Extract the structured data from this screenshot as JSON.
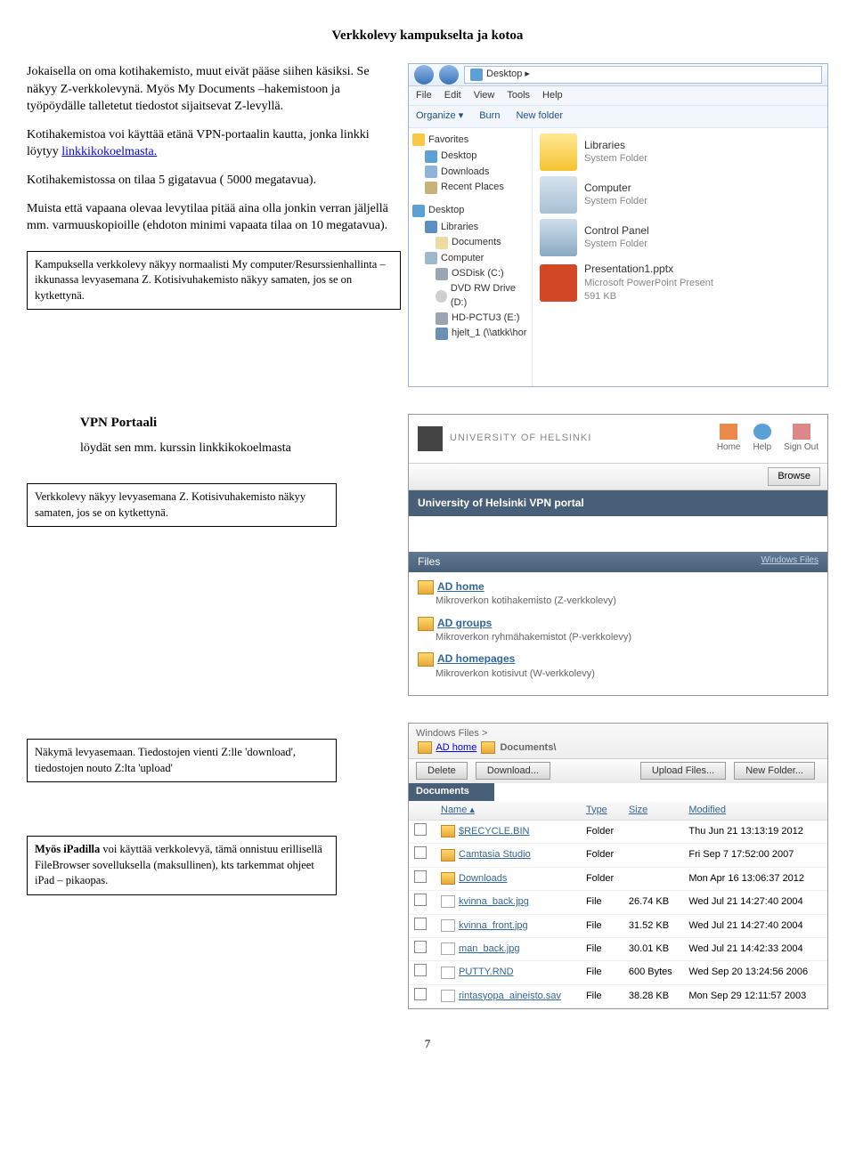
{
  "title": "Verkkolevy kampukselta ja kotoa",
  "intro": {
    "p1": "Jokaisella on oma kotihakemisto, muut eivät pääse siihen käsiksi. Se näkyy Z-verkkolevynä. Myös My Documents –hakemistoon ja työpöydälle talletetut tiedostot sijaitsevat Z-levyllä.",
    "p2a": "Kotihakemistoa voi käyttää etänä VPN-portaalin kautta, jonka linkki löytyy ",
    "p2link": "linkkikokoelmasta.",
    "p3": "Kotihakemistossa on tilaa 5 gigatavua ( 5000 megatavua).",
    "p4": "Muista että vapaana olevaa levytilaa pitää aina olla jonkin verran jäljellä mm. varmuuskopioille (ehdoton minimi vapaata tilaa on 10 megatavua)."
  },
  "callout1": "Kampuksella verkkolevy näkyy normaalisti My computer/Resurssienhallinta –ikkunassa levyasemana Z. Kotisivuhakemisto näkyy samaten, jos se on kytkettynä.",
  "explorer": {
    "breadcrumb_icon": "Desktop",
    "breadcrumb": "Desktop ▸",
    "menu": [
      "File",
      "Edit",
      "View",
      "Tools",
      "Help"
    ],
    "toolbar": [
      "Organize ▾",
      "Burn",
      "New folder"
    ],
    "favorites_title": "Favorites",
    "favorites": [
      "Desktop",
      "Downloads",
      "Recent Places"
    ],
    "desktop_title": "Desktop",
    "desktop_items": [
      "Libraries",
      "Documents",
      "Computer",
      "OSDisk (C:)",
      "DVD RW Drive (D:)",
      "HD-PCTU3 (E:)",
      "hjelt_1 (\\\\atkk\\hor"
    ],
    "content": [
      {
        "t1": "Libraries",
        "t2": "System Folder",
        "cls": "folder"
      },
      {
        "t1": "Computer",
        "t2": "System Folder",
        "cls": "computer"
      },
      {
        "t1": "Control Panel",
        "t2": "System Folder",
        "cls": "cp"
      },
      {
        "t1": "Presentation1.pptx",
        "t2": "Microsoft PowerPoint Present",
        "t3": "591 KB",
        "cls": "pp"
      }
    ]
  },
  "vpn": {
    "heading": "VPN Portaali",
    "sub": "löydät sen mm. kurssin linkkikokoelmasta",
    "callout": "Verkkolevy näkyy levyasemana Z. Kotisivuhakemisto näkyy samaten, jos se on kytkettynä.",
    "org": "UNIVERSITY OF HELSINKI",
    "icons": [
      "Home",
      "Help",
      "Sign Out"
    ],
    "browse": "Browse",
    "darkbar": "University of Helsinki VPN portal",
    "files": "Files",
    "wf": "Windows Files",
    "list": [
      {
        "t": "AD home",
        "d": "Mikroverkon kotihakemisto (Z-verkkolevy)"
      },
      {
        "t": "AD groups",
        "d": "Mikroverkon ryhmähakemistot (P-verkkolevy)"
      },
      {
        "t": "AD homepages",
        "d": "Mikroverkon kotisivut (W-verkkolevy)"
      }
    ]
  },
  "sec3": {
    "callout": "Näkymä levyasemaan. Tiedostojen vienti Z:lle 'download', tiedostojen nouto Z:lta 'upload'",
    "bc_prefix": "Windows Files >",
    "bc_link": "AD home",
    "bc_tail": "Documents\\",
    "btns_left": [
      "Delete",
      "Download..."
    ],
    "btns_right": [
      "Upload Files...",
      "New Folder..."
    ],
    "docbar": "Documents",
    "cols": [
      "Name",
      "Type",
      "Size",
      "Modified"
    ],
    "rows": [
      {
        "n": "$RECYCLE.BIN",
        "t": "Folder",
        "s": "",
        "m": "Thu Jun 21 13:13:19 2012",
        "f": "folder"
      },
      {
        "n": "Camtasia Studio",
        "t": "Folder",
        "s": "",
        "m": "Fri Sep 7 17:52:00 2007",
        "f": "folder"
      },
      {
        "n": "Downloads",
        "t": "Folder",
        "s": "",
        "m": "Mon Apr 16 13:06:37 2012",
        "f": "folder"
      },
      {
        "n": "kvinna_back.jpg",
        "t": "File",
        "s": "26.74 KB",
        "m": "Wed Jul 21 14:27:40 2004",
        "f": "file"
      },
      {
        "n": "kvinna_front.jpg",
        "t": "File",
        "s": "31.52 KB",
        "m": "Wed Jul 21 14:27:40 2004",
        "f": "file"
      },
      {
        "n": "man_back.jpg",
        "t": "File",
        "s": "30.01 KB",
        "m": "Wed Jul 21 14:42:33 2004",
        "f": "file"
      },
      {
        "n": "PUTTY.RND",
        "t": "File",
        "s": "600 Bytes",
        "m": "Wed Sep 20 13:24:56 2006",
        "f": "file"
      },
      {
        "n": "rintasyopa_aineisto.sav",
        "t": "File",
        "s": "38.28 KB",
        "m": "Mon Sep 29 12:11:57 2003",
        "f": "file"
      }
    ]
  },
  "callout4": "Myös iPadilla voi käyttää verkkolevyä, tämä onnistuu erillisellä FileBrowser sovelluksella (maksullinen), kts tarkemmat ohjeet iPad – pikaopas.",
  "pagenum": "7"
}
